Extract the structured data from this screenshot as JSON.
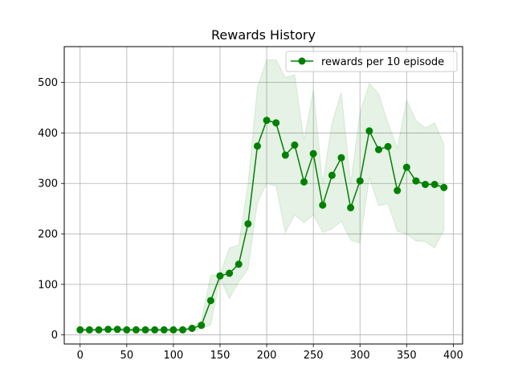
{
  "chart_data": {
    "type": "line",
    "title": "Rewards History",
    "xlabel": "",
    "ylabel": "",
    "xlim": [
      -17,
      410
    ],
    "ylim": [
      -18,
      571
    ],
    "xticks": [
      0,
      50,
      100,
      150,
      200,
      250,
      300,
      350,
      400
    ],
    "yticks": [
      0,
      100,
      200,
      300,
      400,
      500
    ],
    "grid": true,
    "legend_position": "top-right",
    "colors": {
      "line": "#008000",
      "band": "#008000",
      "grid": "#b0b0b0"
    },
    "series": [
      {
        "name": "rewards per 10 episode",
        "x": [
          0,
          10,
          20,
          30,
          40,
          50,
          60,
          70,
          80,
          90,
          100,
          110,
          120,
          130,
          140,
          150,
          160,
          170,
          180,
          190,
          200,
          210,
          220,
          230,
          240,
          250,
          260,
          270,
          280,
          290,
          300,
          310,
          320,
          330,
          340,
          350,
          360,
          370,
          380,
          390
        ],
        "values": [
          10,
          10,
          10,
          11,
          11,
          10,
          10,
          10,
          10,
          10,
          10,
          10,
          13,
          19,
          68,
          117,
          122,
          140,
          220,
          374,
          425,
          420,
          356,
          376,
          303,
          359,
          257,
          316,
          351,
          252,
          305,
          404,
          367,
          373,
          286,
          332,
          305,
          298,
          298,
          292
        ],
        "upper": [
          12,
          12,
          12,
          13,
          13,
          12,
          12,
          12,
          12,
          12,
          12,
          12,
          16,
          28,
          118,
          120,
          172,
          178,
          300,
          490,
          545,
          545,
          510,
          515,
          385,
          485,
          300,
          420,
          480,
          300,
          440,
          498,
          478,
          420,
          370,
          465,
          425,
          410,
          420,
          378
        ],
        "lower": [
          8,
          8,
          8,
          9,
          9,
          8,
          8,
          8,
          8,
          8,
          8,
          8,
          10,
          12,
          20,
          112,
          72,
          105,
          130,
          262,
          300,
          295,
          202,
          238,
          222,
          238,
          203,
          210,
          225,
          188,
          182,
          312,
          256,
          260,
          205,
          200,
          186,
          185,
          172,
          208
        ]
      }
    ]
  }
}
